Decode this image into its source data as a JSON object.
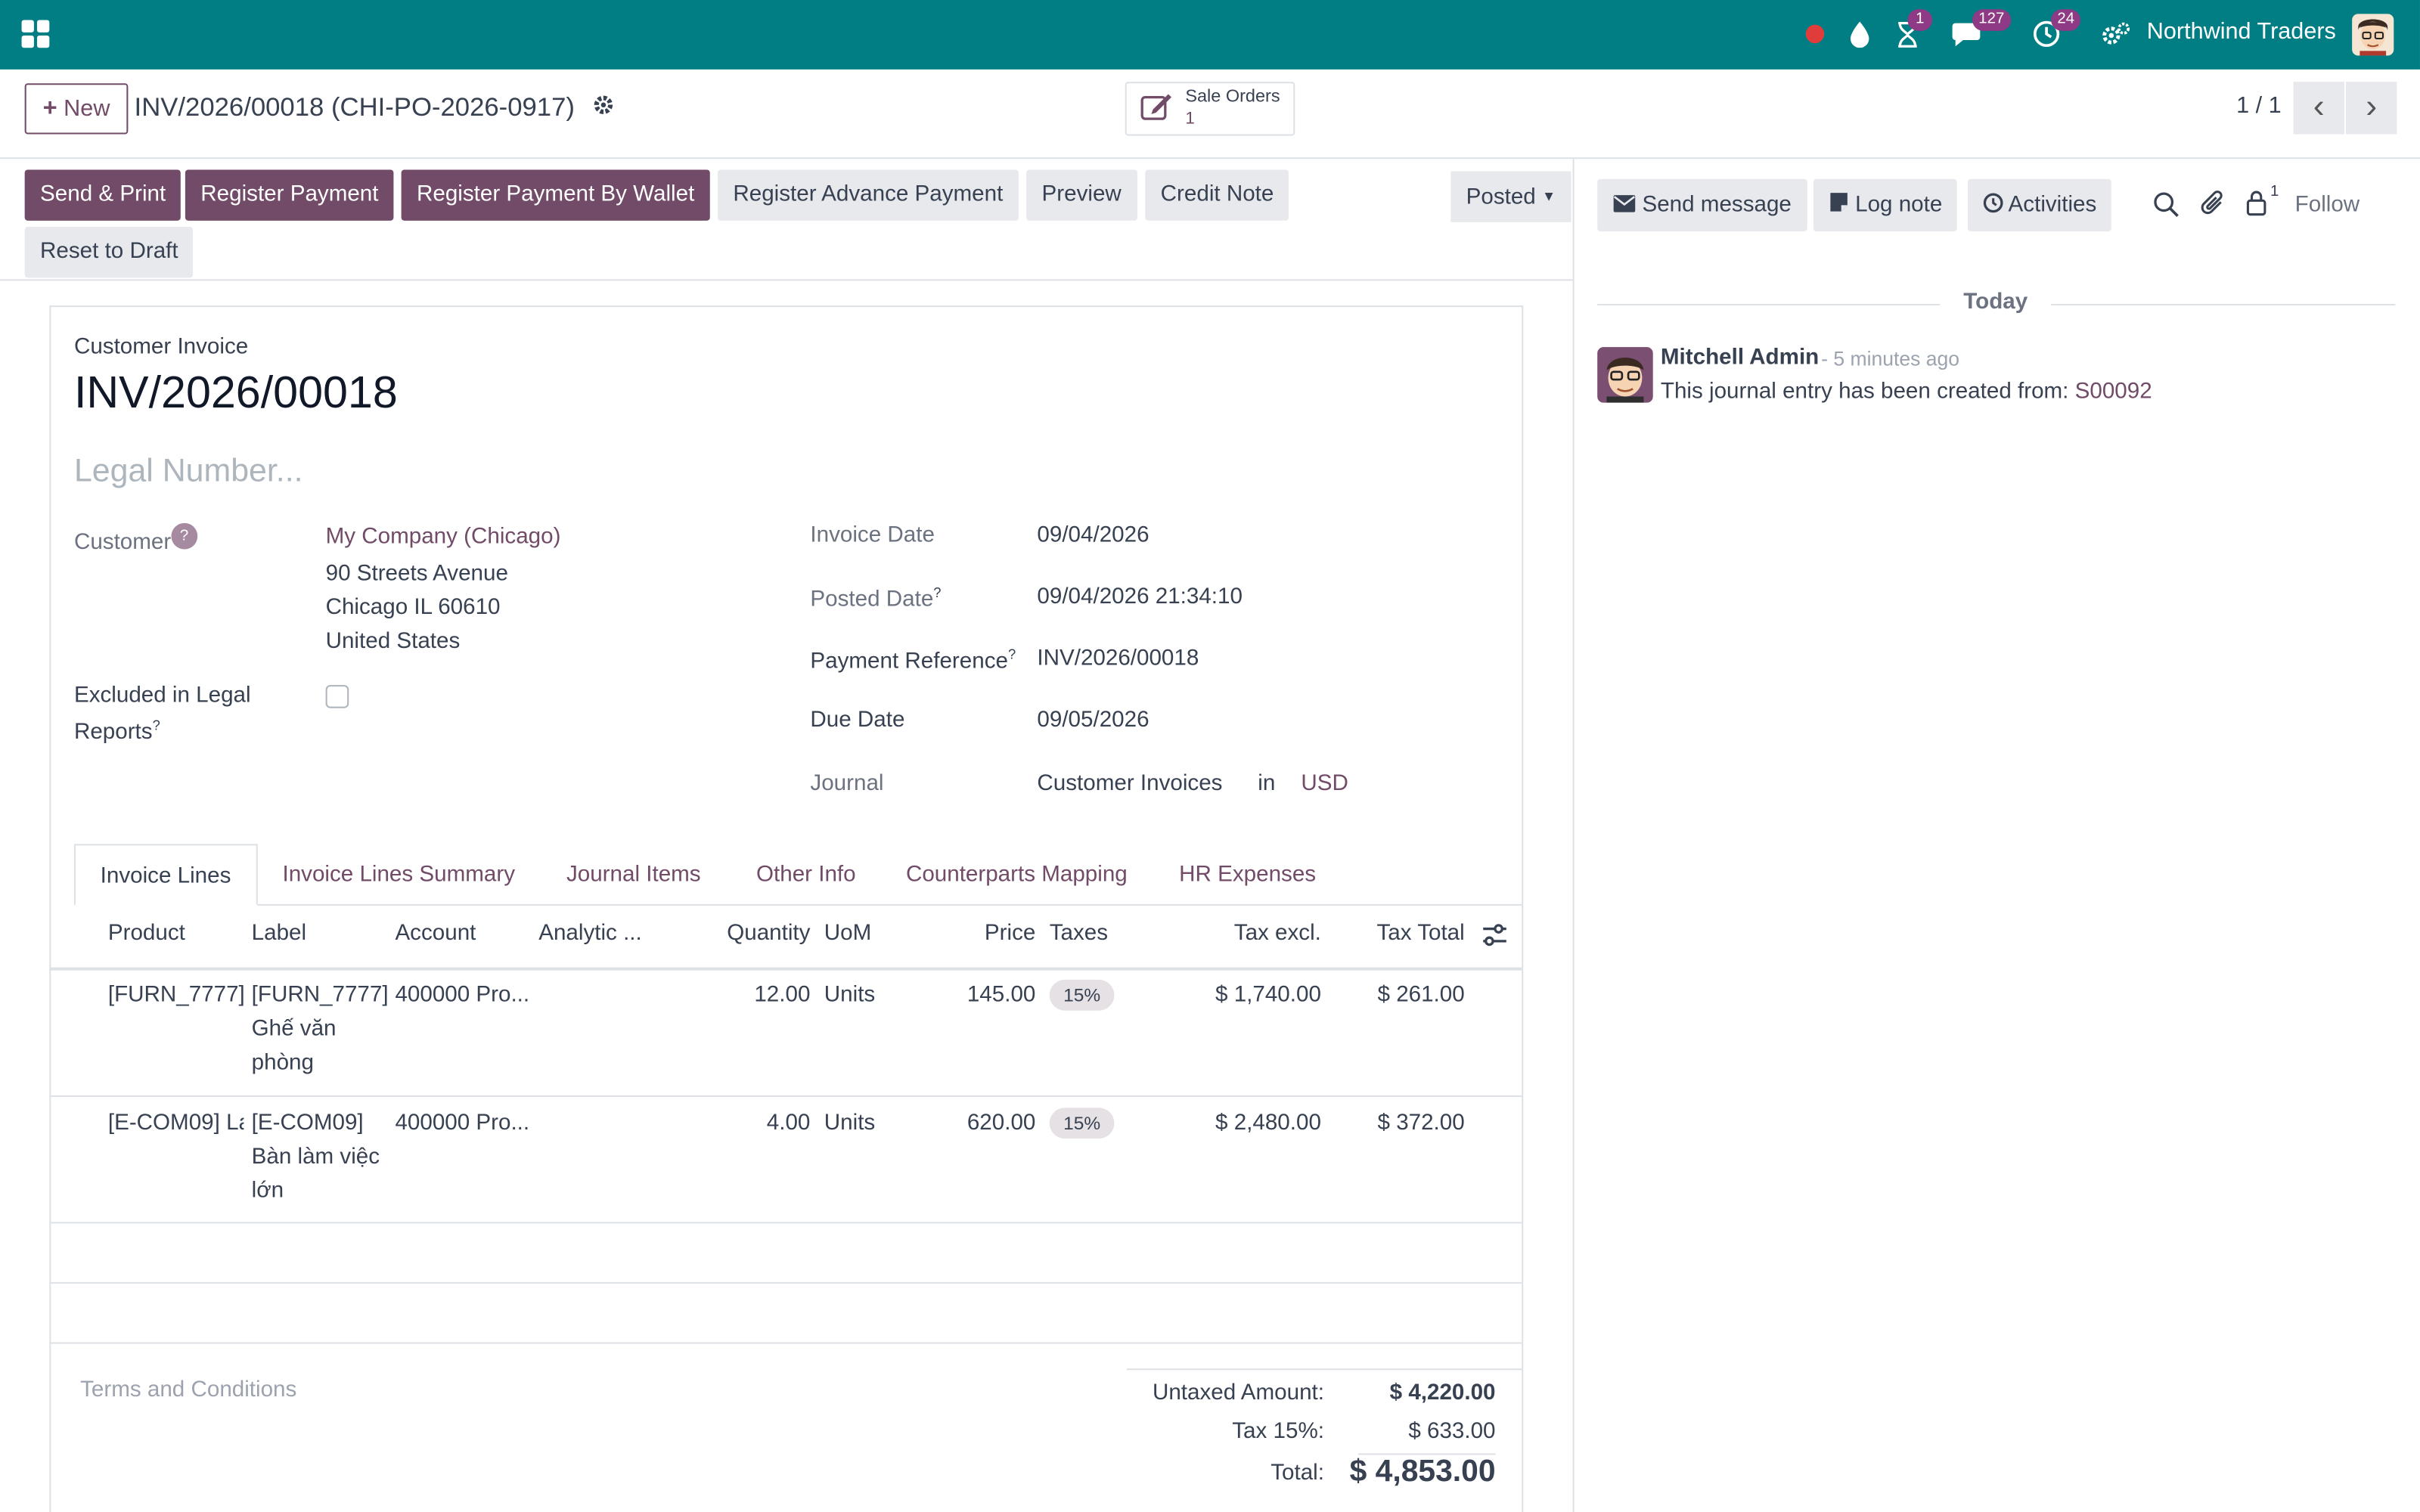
{
  "topbar": {
    "company": "Northwind Traders",
    "icons": [
      "record-dot-icon",
      "drop-icon",
      "hourglass-icon",
      "chat-icon",
      "clock-icon",
      "gear-users-icon"
    ],
    "badges": {
      "activities": "1",
      "messages": "127",
      "timers": "24"
    },
    "accent": "#017e84"
  },
  "control_panel": {
    "new_label": "New",
    "record_title": "INV/2026/00018 (CHI-PO-2026-0917)",
    "smart_button": {
      "label": "Sale Orders",
      "count": "1"
    },
    "pager": "1 / 1"
  },
  "actions": {
    "send_print": "Send & Print",
    "register_payment": "Register Payment",
    "register_wallet": "Register Payment By Wallet",
    "register_advance": "Register Advance Payment",
    "preview": "Preview",
    "credit_note": "Credit Note",
    "reset_draft": "Reset to Draft",
    "status": "Posted"
  },
  "form": {
    "doc_type": "Customer Invoice",
    "number": "INV/2026/00018",
    "legal_placeholder": "Legal Number...",
    "customer_label": "Customer",
    "customer_name": "My Company (Chicago)",
    "address": [
      "90 Streets Avenue",
      "Chicago IL 60610",
      "United States"
    ],
    "excluded_label_1": "Excluded in Legal",
    "excluded_label_2": "Reports",
    "invoice_date_label": "Invoice Date",
    "invoice_date": "09/04/2026",
    "posted_date_label": "Posted Date",
    "posted_date": "09/04/2026 21:34:10",
    "payment_ref_label": "Payment Reference",
    "payment_ref": "INV/2026/00018",
    "due_date_label": "Due Date",
    "due_date": "09/05/2026",
    "journal_label": "Journal",
    "journal": "Customer Invoices",
    "journal_in": "in",
    "currency": "USD"
  },
  "tabs": [
    "Invoice Lines",
    "Invoice Lines Summary",
    "Journal Items",
    "Other Info",
    "Counterparts Mapping",
    "HR Expenses"
  ],
  "table": {
    "headers": [
      "Product",
      "Label",
      "Account",
      "Analytic ...",
      "Quantity",
      "UoM",
      "Price",
      "Taxes",
      "Tax excl.",
      "Tax Total"
    ],
    "rows": [
      {
        "product": "[FURN_7777] '",
        "label": [
          "[FURN_7777]",
          "Ghế văn",
          "phòng"
        ],
        "account": "400000 Pro...",
        "quantity": "12.00",
        "uom": "Units",
        "price": "145.00",
        "tax": "15%",
        "tax_excl": "$ 1,740.00",
        "tax_total": "$ 261.00"
      },
      {
        "product": "[E-COM09] La",
        "label": [
          "[E-COM09]",
          "Bàn làm việc",
          "lớn"
        ],
        "account": "400000 Pro...",
        "quantity": "4.00",
        "uom": "Units",
        "price": "620.00",
        "tax": "15%",
        "tax_excl": "$ 2,480.00",
        "tax_total": "$ 372.00"
      }
    ]
  },
  "footer": {
    "terms_placeholder": "Terms and Conditions",
    "untaxed_label": "Untaxed Amount:",
    "untaxed": "$ 4,220.00",
    "tax_label": "Tax 15%:",
    "tax": "$ 633.00",
    "total_label": "Total:",
    "total": "$ 4,853.00"
  },
  "chatter": {
    "send_message": "Send message",
    "log_note": "Log note",
    "activities": "Activities",
    "followers_count": "1",
    "follow": "Follow",
    "date_separator": "Today",
    "message": {
      "author": "Mitchell Admin",
      "time": "- 5 minutes ago",
      "body": "This journal entry has been created from:",
      "link": "S00092"
    }
  }
}
